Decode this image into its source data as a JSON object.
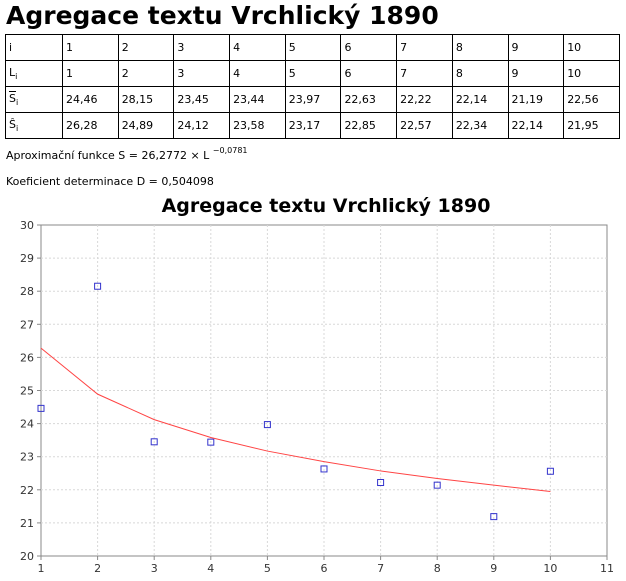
{
  "title": "Agregace textu Vrchlický 1890",
  "table": {
    "rows": [
      {
        "head": "i",
        "cells": [
          "1",
          "2",
          "3",
          "4",
          "5",
          "6",
          "7",
          "8",
          "9",
          "10"
        ]
      },
      {
        "head": "L",
        "sub": "i",
        "cells": [
          "1",
          "2",
          "3",
          "4",
          "5",
          "6",
          "7",
          "8",
          "9",
          "10"
        ]
      },
      {
        "head": "S",
        "sub": "i",
        "overline": true,
        "cells": [
          "24,46",
          "28,15",
          "23,45",
          "23,44",
          "23,97",
          "22,63",
          "22,22",
          "22,14",
          "21,19",
          "22,56"
        ]
      },
      {
        "head": "Ŝ",
        "sub": "i",
        "cells": [
          "26,28",
          "24,89",
          "24,12",
          "23,58",
          "23,17",
          "22,85",
          "22,57",
          "22,34",
          "22,14",
          "21,95"
        ]
      }
    ]
  },
  "approx": {
    "text": "Aproximační funkce S = 26,2772 × L",
    "exponent": "−0,0781"
  },
  "determination": "Koeficient determinace D = 0,504098",
  "chart_data": {
    "type": "scatter",
    "title": "Agregace textu Vrchlický 1890",
    "xlim": [
      1,
      11
    ],
    "ylim": [
      20,
      30
    ],
    "xticks": [
      "1",
      "2",
      "3",
      "4",
      "5",
      "6",
      "7",
      "8",
      "9",
      "10",
      "11"
    ],
    "yticks": [
      "20",
      "21",
      "22",
      "23",
      "24",
      "25",
      "26",
      "27",
      "28",
      "29",
      "30"
    ],
    "grid": true,
    "series": [
      {
        "kind": "points",
        "color": "#3333cc",
        "x": [
          1,
          2,
          3,
          4,
          5,
          6,
          7,
          8,
          9,
          10
        ],
        "y": [
          24.46,
          28.15,
          23.45,
          23.44,
          23.97,
          22.63,
          22.22,
          22.14,
          21.19,
          22.56
        ]
      },
      {
        "kind": "line",
        "color": "#ff4444",
        "x": [
          1,
          2,
          3,
          4,
          5,
          6,
          7,
          8,
          9,
          10
        ],
        "y": [
          26.28,
          24.89,
          24.12,
          23.58,
          23.17,
          22.85,
          22.57,
          22.34,
          22.14,
          21.95
        ]
      }
    ]
  }
}
